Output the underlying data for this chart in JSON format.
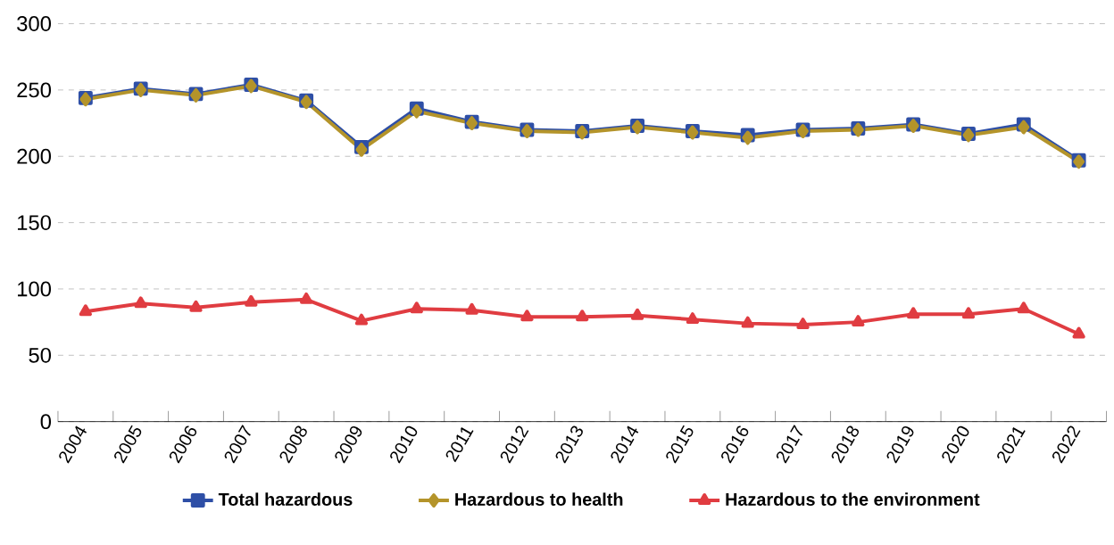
{
  "chart_data": {
    "type": "line",
    "categories": [
      "2004",
      "2005",
      "2006",
      "2007",
      "2008",
      "2009",
      "2010",
      "2011",
      "2012",
      "2013",
      "2014",
      "2015",
      "2016",
      "2017",
      "2018",
      "2019",
      "2020",
      "2021",
      "2022"
    ],
    "series": [
      {
        "name": "Total hazardous",
        "color": "#2e4fa6",
        "marker": "square",
        "values": [
          244,
          251,
          247,
          254,
          242,
          207,
          236,
          226,
          220,
          219,
          223,
          219,
          216,
          220,
          221,
          224,
          217,
          224,
          197
        ]
      },
      {
        "name": "Hazardous to health",
        "color": "#b4942a",
        "marker": "diamond",
        "values": [
          243,
          250,
          246,
          253,
          241,
          205,
          234,
          225,
          219,
          218,
          222,
          218,
          214,
          219,
          220,
          223,
          216,
          222,
          196
        ]
      },
      {
        "name": "Hazardous to the environment",
        "color": "#e03c41",
        "marker": "triangle",
        "values": [
          83,
          89,
          86,
          90,
          92,
          76,
          85,
          84,
          79,
          79,
          80,
          77,
          74,
          73,
          75,
          81,
          81,
          85,
          66
        ]
      }
    ],
    "ylim": [
      0,
      300
    ],
    "yticks": [
      0,
      50,
      100,
      150,
      200,
      250,
      300
    ],
    "grid": "y",
    "legend": "bottom",
    "line_style": "solid"
  }
}
